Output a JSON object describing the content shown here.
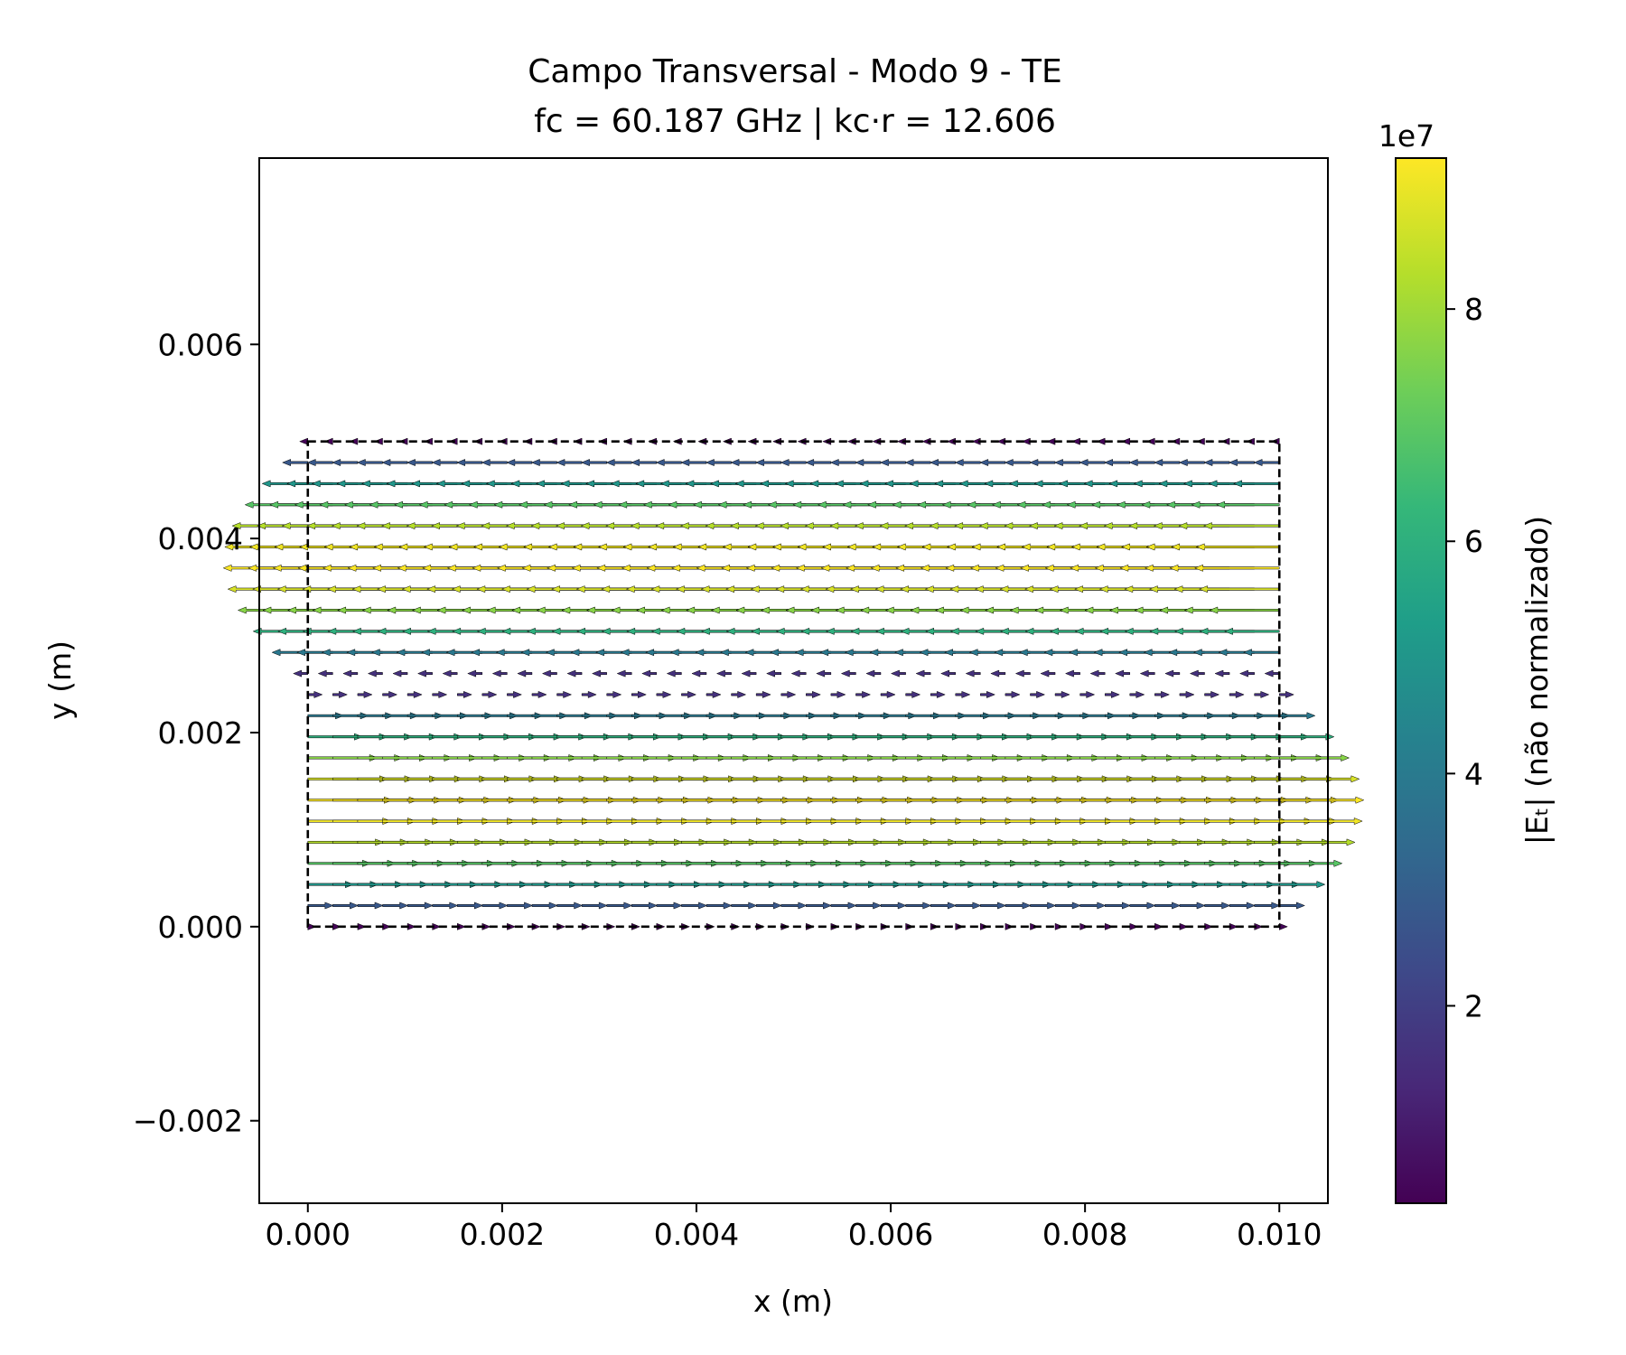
{
  "chart_data": {
    "type": "quiver",
    "title_line1": "Campo Transversal - Modo 9 - TE",
    "title_line2": "fc = 60.187 GHz | kc·r = 12.606",
    "xlabel": "x (m)",
    "ylabel": "y (m)",
    "xlim": [
      -0.0005,
      0.0105
    ],
    "ylim": [
      -0.00285,
      0.00792
    ],
    "x_ticks": [
      0.0,
      0.002,
      0.004,
      0.006,
      0.008,
      0.01
    ],
    "x_tick_labels": [
      "0.000",
      "0.002",
      "0.004",
      "0.006",
      "0.008",
      "0.010"
    ],
    "y_ticks": [
      -0.002,
      0.0,
      0.002,
      0.004,
      0.006
    ],
    "y_tick_labels": [
      "−0.002",
      "0.000",
      "0.002",
      "0.004",
      "0.006"
    ],
    "grid": false,
    "boundary": {
      "x0": 0.0,
      "x1": 0.01,
      "y0": 0.0,
      "y1": 0.005,
      "style": "dashed",
      "color": "#000000"
    },
    "field": {
      "grid_x": {
        "start": 0.0,
        "end": 0.01,
        "count": 40
      },
      "grid_y": {
        "start": 0.0,
        "end": 0.005,
        "count": 24
      },
      "upper_band": {
        "y_min": 0.0025,
        "y_max": 0.005,
        "direction": "-x",
        "peak_y": 0.00375
      },
      "lower_band": {
        "y_min": 0.0,
        "y_max": 0.0025,
        "direction": "+x",
        "peak_y": 0.00125
      },
      "magnitude_max": 93000000.0
    },
    "colorbar": {
      "label": "|Eₜ| (não normalizado)",
      "offset_label": "1e7",
      "range": [
        0.3,
        9.3
      ],
      "ticks": [
        2,
        4,
        6,
        8
      ],
      "tick_labels": [
        "2",
        "4",
        "6",
        "8"
      ],
      "colormap": "viridis",
      "colors": [
        "#440154",
        "#482878",
        "#3e4989",
        "#31688e",
        "#26828e",
        "#1f9e89",
        "#35b779",
        "#6ece58",
        "#b5de2b",
        "#fde725"
      ]
    }
  }
}
